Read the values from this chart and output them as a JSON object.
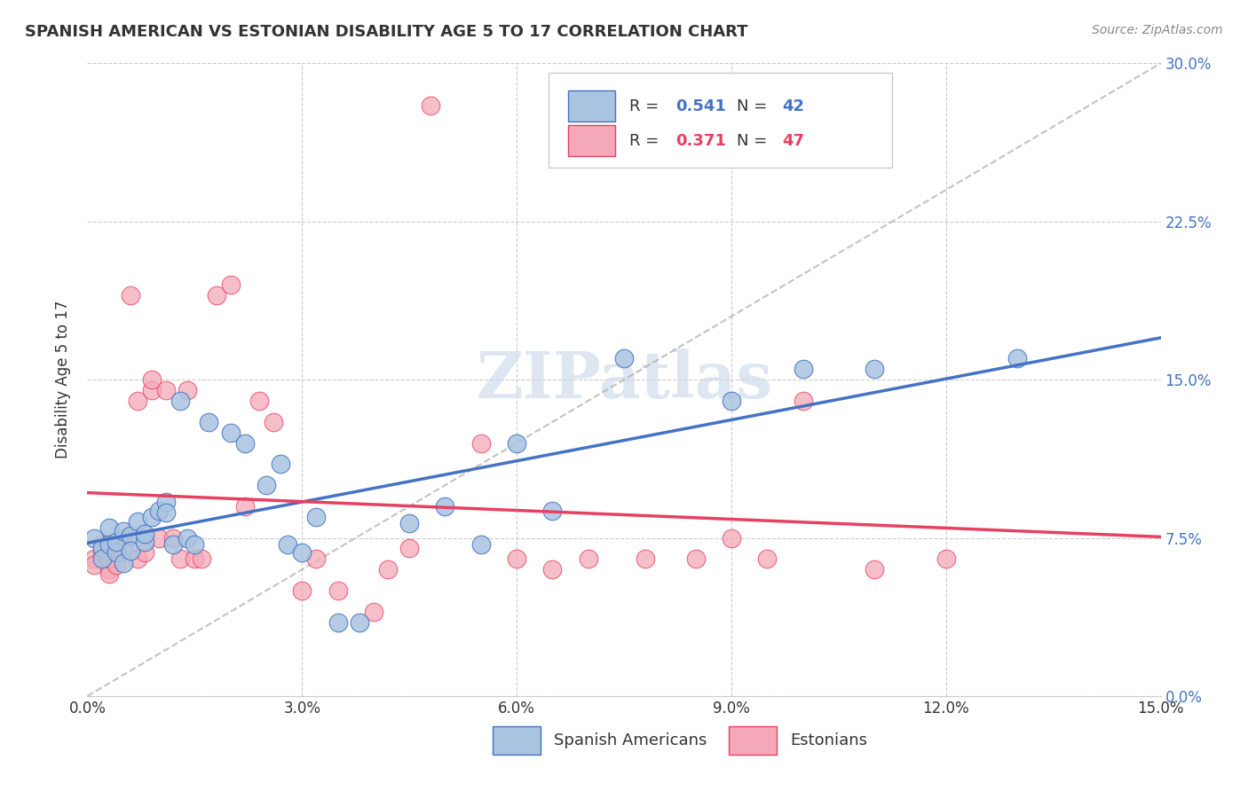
{
  "title": "SPANISH AMERICAN VS ESTONIAN DISABILITY AGE 5 TO 17 CORRELATION CHART",
  "source": "Source: ZipAtlas.com",
  "xlabel": "",
  "ylabel": "Disability Age 5 to 17",
  "xlim": [
    0.0,
    0.15
  ],
  "ylim": [
    0.0,
    0.3
  ],
  "xticks": [
    0.0,
    0.03,
    0.06,
    0.09,
    0.12,
    0.15
  ],
  "xtick_labels": [
    "0.0%",
    "3.0%",
    "6.0%",
    "9.0%",
    "12.0%",
    "15.0%"
  ],
  "yticks_left": [],
  "yticks_right": [
    0.0,
    0.075,
    0.15,
    0.225,
    0.3
  ],
  "ytick_right_labels": [
    "0.0%",
    "7.5%",
    "15.0%",
    "22.5%",
    "30.0%"
  ],
  "legend_entries": [
    {
      "label": "R = 0.541   N = 42",
      "color": "#a8c4e0",
      "type": "Spanish Americans"
    },
    {
      "label": "R = 0.371   N = 47",
      "color": "#f4a0b0",
      "type": "Estonians"
    }
  ],
  "spanish_x": [
    0.001,
    0.002,
    0.002,
    0.003,
    0.003,
    0.004,
    0.004,
    0.005,
    0.005,
    0.006,
    0.006,
    0.007,
    0.008,
    0.008,
    0.009,
    0.01,
    0.011,
    0.011,
    0.012,
    0.013,
    0.014,
    0.015,
    0.017,
    0.02,
    0.022,
    0.025,
    0.027,
    0.028,
    0.03,
    0.032,
    0.035,
    0.038,
    0.045,
    0.05,
    0.055,
    0.06,
    0.065,
    0.075,
    0.09,
    0.1,
    0.11,
    0.13
  ],
  "spanish_y": [
    0.075,
    0.07,
    0.065,
    0.08,
    0.072,
    0.068,
    0.073,
    0.063,
    0.078,
    0.076,
    0.069,
    0.083,
    0.073,
    0.077,
    0.085,
    0.088,
    0.092,
    0.087,
    0.072,
    0.14,
    0.075,
    0.072,
    0.13,
    0.125,
    0.12,
    0.1,
    0.11,
    0.072,
    0.068,
    0.085,
    0.035,
    0.035,
    0.082,
    0.09,
    0.072,
    0.12,
    0.088,
    0.16,
    0.14,
    0.155,
    0.155,
    0.16
  ],
  "estonian_x": [
    0.001,
    0.001,
    0.002,
    0.002,
    0.003,
    0.003,
    0.003,
    0.004,
    0.004,
    0.005,
    0.005,
    0.006,
    0.007,
    0.007,
    0.008,
    0.009,
    0.009,
    0.01,
    0.011,
    0.012,
    0.013,
    0.014,
    0.015,
    0.016,
    0.018,
    0.02,
    0.022,
    0.024,
    0.026,
    0.03,
    0.032,
    0.035,
    0.04,
    0.042,
    0.045,
    0.048,
    0.055,
    0.06,
    0.065,
    0.07,
    0.078,
    0.085,
    0.09,
    0.095,
    0.1,
    0.11,
    0.12
  ],
  "estonian_y": [
    0.065,
    0.062,
    0.068,
    0.072,
    0.06,
    0.058,
    0.065,
    0.07,
    0.062,
    0.075,
    0.07,
    0.19,
    0.065,
    0.14,
    0.068,
    0.145,
    0.15,
    0.075,
    0.145,
    0.075,
    0.065,
    0.145,
    0.065,
    0.065,
    0.19,
    0.195,
    0.09,
    0.14,
    0.13,
    0.05,
    0.065,
    0.05,
    0.04,
    0.06,
    0.07,
    0.28,
    0.12,
    0.065,
    0.06,
    0.065,
    0.065,
    0.065,
    0.075,
    0.065,
    0.14,
    0.06,
    0.065
  ],
  "blue_line_color": "#4472C4",
  "pink_line_color": "#E84060",
  "scatter_blue": "#a8c4e0",
  "scatter_pink": "#f4a8b8",
  "background_color": "#ffffff",
  "grid_color": "#cccccc",
  "watermark": "ZIPatlas",
  "watermark_color": "#c8d8e8"
}
